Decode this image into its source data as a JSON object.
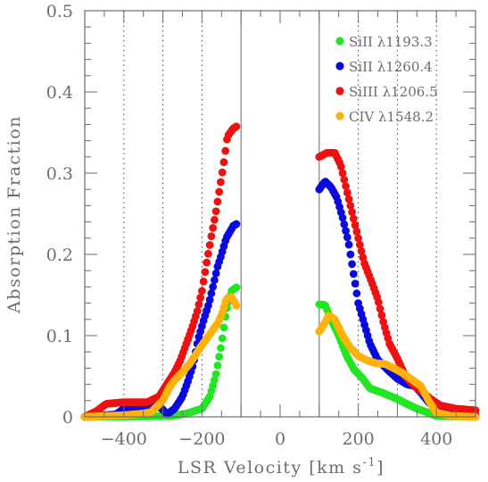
{
  "chart_data": {
    "type": "scatter",
    "title": "",
    "xlabel": "LSR Velocity [km s",
    "xlabel_sup": "-1",
    "xlabel_end": "]",
    "ylabel": "Absorption Fraction",
    "xlim": [
      -500,
      500
    ],
    "ylim": [
      0,
      0.5
    ],
    "x_ticks": [
      -400,
      -200,
      0,
      200,
      400
    ],
    "x_tick_labels": [
      "−400",
      "−200",
      "0",
      "200",
      "400"
    ],
    "y_ticks": [
      0,
      0.1,
      0.2,
      0.3,
      0.4,
      0.5
    ],
    "y_tick_labels": [
      "0",
      "0.1",
      "0.2",
      "0.3",
      "0.4",
      "0.5"
    ],
    "legend_position": "top-right",
    "grid": false,
    "vertical_lines": {
      "solid": [
        -100,
        100
      ],
      "dotted": [
        -400,
        -300,
        -200,
        200,
        300,
        400
      ]
    },
    "series": [
      {
        "name": "SiII  λ1193.3",
        "color": "#22e622",
        "anchors": [
          [
            -500,
            0
          ],
          [
            -280,
            0.001
          ],
          [
            -240,
            0.004
          ],
          [
            -200,
            0.01
          ],
          [
            -180,
            0.025
          ],
          [
            -165,
            0.05
          ],
          [
            -150,
            0.09
          ],
          [
            -138,
            0.13
          ],
          [
            -125,
            0.155
          ],
          [
            -110,
            0.16
          ],
          [
            105,
            0.138
          ],
          [
            115,
            0.138
          ],
          [
            130,
            0.12
          ],
          [
            150,
            0.1
          ],
          [
            170,
            0.075
          ],
          [
            190,
            0.058
          ],
          [
            210,
            0.048
          ],
          [
            230,
            0.035
          ],
          [
            260,
            0.03
          ],
          [
            300,
            0.022
          ],
          [
            320,
            0.017
          ],
          [
            350,
            0.01
          ],
          [
            380,
            0.005
          ],
          [
            400,
            0.001
          ],
          [
            500,
            0
          ]
        ]
      },
      {
        "name": "SiII  λ1260.4",
        "color": "#0a0adf",
        "anchors": [
          [
            -500,
            0
          ],
          [
            -420,
            0.003
          ],
          [
            -400,
            0.01
          ],
          [
            -370,
            0.012
          ],
          [
            -340,
            0.012
          ],
          [
            -320,
            0.015
          ],
          [
            -300,
            0.009
          ],
          [
            -290,
            0.003
          ],
          [
            -270,
            0.01
          ],
          [
            -250,
            0.025
          ],
          [
            -235,
            0.045
          ],
          [
            -222,
            0.065
          ],
          [
            -210,
            0.095
          ],
          [
            -195,
            0.12
          ],
          [
            -182,
            0.14
          ],
          [
            -172,
            0.16
          ],
          [
            -160,
            0.185
          ],
          [
            -150,
            0.2
          ],
          [
            -138,
            0.22
          ],
          [
            -120,
            0.235
          ],
          [
            -110,
            0.238
          ],
          [
            100,
            0.28
          ],
          [
            115,
            0.29
          ],
          [
            130,
            0.283
          ],
          [
            145,
            0.27
          ],
          [
            160,
            0.245
          ],
          [
            175,
            0.215
          ],
          [
            190,
            0.17
          ],
          [
            200,
            0.14
          ],
          [
            215,
            0.115
          ],
          [
            230,
            0.09
          ],
          [
            250,
            0.07
          ],
          [
            275,
            0.058
          ],
          [
            300,
            0.047
          ],
          [
            325,
            0.04
          ],
          [
            345,
            0.038
          ],
          [
            360,
            0.03
          ],
          [
            380,
            0.018
          ],
          [
            400,
            0.01
          ],
          [
            430,
            0.006
          ],
          [
            470,
            0.003
          ],
          [
            500,
            0.002
          ]
        ]
      },
      {
        "name": "SiIII λ1206.5",
        "color": "#ee1111",
        "anchors": [
          [
            -500,
            0
          ],
          [
            -470,
            0.007
          ],
          [
            -445,
            0.016
          ],
          [
            -400,
            0.018
          ],
          [
            -340,
            0.018
          ],
          [
            -310,
            0.025
          ],
          [
            -290,
            0.04
          ],
          [
            -270,
            0.055
          ],
          [
            -255,
            0.07
          ],
          [
            -240,
            0.09
          ],
          [
            -225,
            0.11
          ],
          [
            -212,
            0.13
          ],
          [
            -200,
            0.155
          ],
          [
            -188,
            0.19
          ],
          [
            -175,
            0.225
          ],
          [
            -165,
            0.25
          ],
          [
            -155,
            0.28
          ],
          [
            -145,
            0.31
          ],
          [
            -135,
            0.345
          ],
          [
            -120,
            0.355
          ],
          [
            -110,
            0.358
          ],
          [
            100,
            0.32
          ],
          [
            120,
            0.325
          ],
          [
            140,
            0.325
          ],
          [
            155,
            0.31
          ],
          [
            170,
            0.28
          ],
          [
            185,
            0.25
          ],
          [
            200,
            0.22
          ],
          [
            215,
            0.19
          ],
          [
            235,
            0.165
          ],
          [
            250,
            0.145
          ],
          [
            265,
            0.115
          ],
          [
            280,
            0.09
          ],
          [
            300,
            0.072
          ],
          [
            320,
            0.05
          ],
          [
            340,
            0.04
          ],
          [
            360,
            0.032
          ],
          [
            385,
            0.022
          ],
          [
            410,
            0.014
          ],
          [
            450,
            0.01
          ],
          [
            500,
            0.008
          ]
        ]
      },
      {
        "name": "CIV  λ1548.2",
        "color": "#ffb10c",
        "anchors": [
          [
            -500,
            0
          ],
          [
            -400,
            0.002
          ],
          [
            -350,
            0.004
          ],
          [
            -330,
            0.006
          ],
          [
            -300,
            0.02
          ],
          [
            -285,
            0.035
          ],
          [
            -270,
            0.045
          ],
          [
            -250,
            0.055
          ],
          [
            -232,
            0.065
          ],
          [
            -218,
            0.075
          ],
          [
            -205,
            0.085
          ],
          [
            -190,
            0.095
          ],
          [
            -175,
            0.105
          ],
          [
            -160,
            0.115
          ],
          [
            -150,
            0.125
          ],
          [
            -138,
            0.145
          ],
          [
            -125,
            0.148
          ],
          [
            -115,
            0.14
          ],
          [
            -110,
            0.135
          ],
          [
            100,
            0.105
          ],
          [
            110,
            0.112
          ],
          [
            125,
            0.125
          ],
          [
            140,
            0.12
          ],
          [
            160,
            0.1
          ],
          [
            180,
            0.085
          ],
          [
            200,
            0.075
          ],
          [
            220,
            0.07
          ],
          [
            245,
            0.066
          ],
          [
            270,
            0.065
          ],
          [
            290,
            0.06
          ],
          [
            310,
            0.055
          ],
          [
            340,
            0.045
          ],
          [
            360,
            0.038
          ],
          [
            380,
            0.02
          ],
          [
            400,
            0.005
          ],
          [
            440,
            0.001
          ],
          [
            500,
            0
          ]
        ]
      }
    ]
  }
}
